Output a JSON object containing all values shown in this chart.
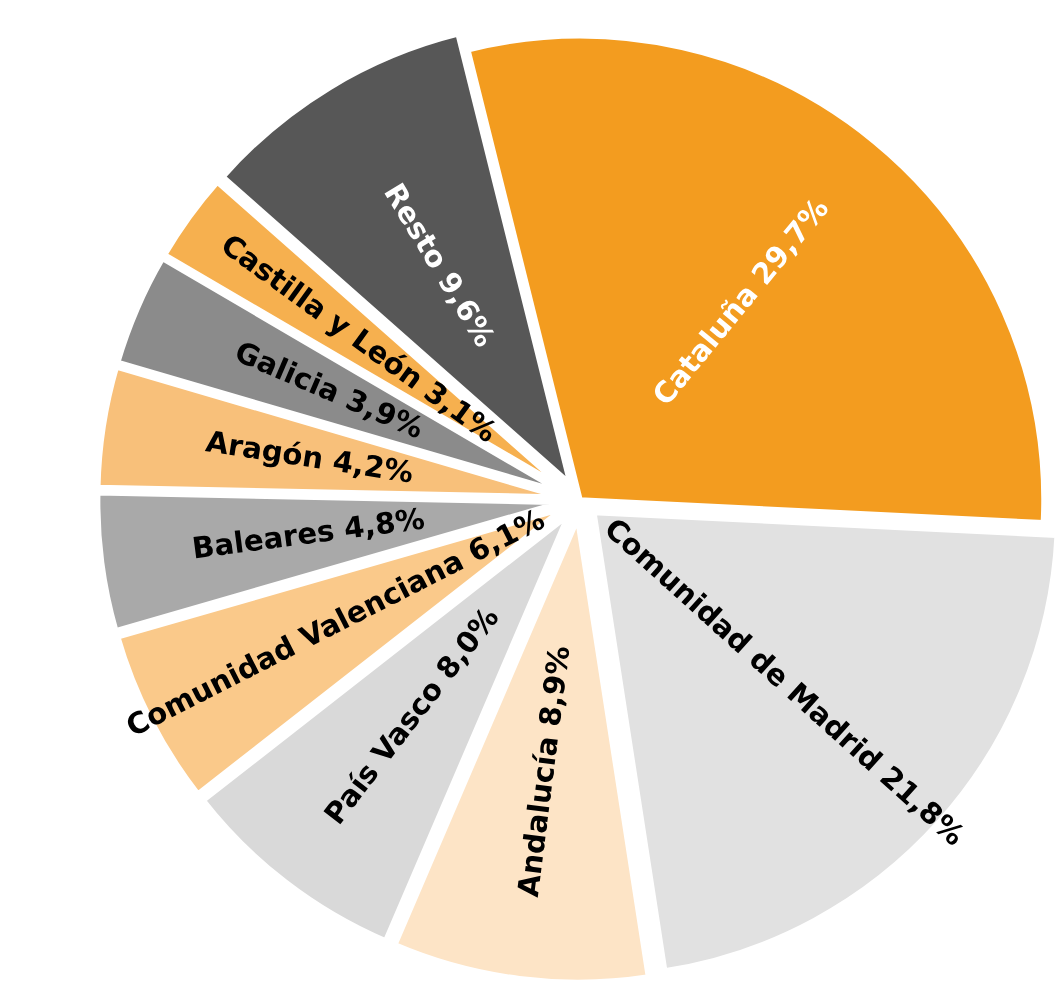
{
  "chart_data": {
    "type": "pie",
    "categories": [
      "Cataluña",
      "Comunidad de Madrid",
      "Andalucía",
      "País Vasco",
      "Comunidad Valenciana",
      "Baleares",
      "Aragón",
      "Galicia",
      "Castilla y León",
      "Resto"
    ],
    "values": [
      29.7,
      21.8,
      8.9,
      8.0,
      6.1,
      4.8,
      4.2,
      3.9,
      3.1,
      9.6
    ],
    "value_labels": [
      "29,7%",
      "21,8%",
      "8,9%",
      "8,0%",
      "6,1%",
      "4,8%",
      "4,2%",
      "3,9%",
      "3,1%",
      "9,6%"
    ],
    "colors": [
      "#f39c1f",
      "#e1e1e1",
      "#fde4c6",
      "#d9d9d9",
      "#fac98a",
      "#a9a9a9",
      "#f8c07a",
      "#8b8b8b",
      "#f6b04f",
      "#575757"
    ],
    "legend": false
  }
}
